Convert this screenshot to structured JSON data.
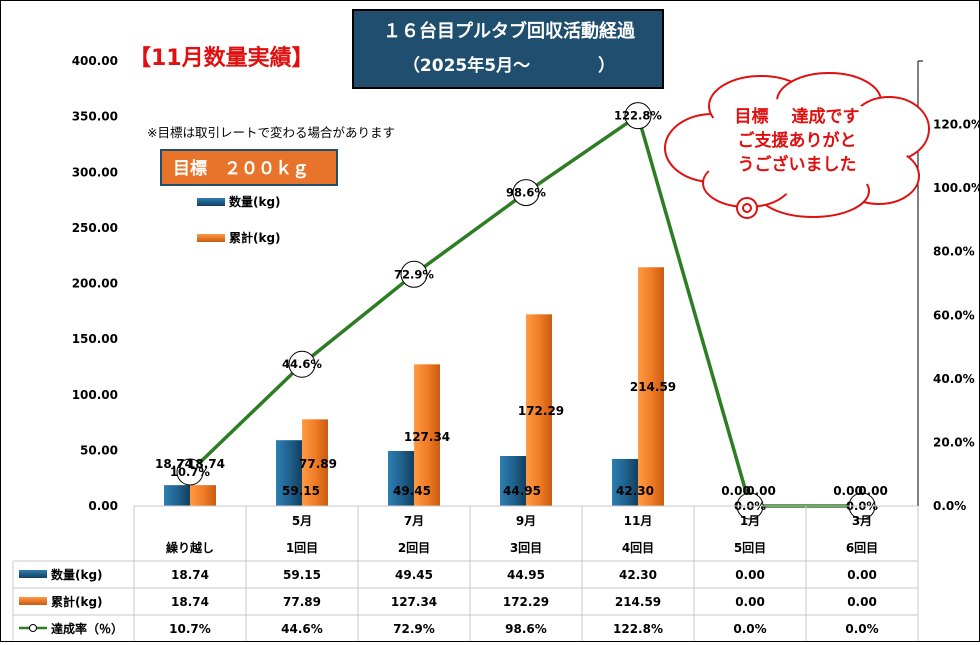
{
  "header": {
    "title_line1": "１６台目プルタブ回収活動経過",
    "title_line2": "（2025年5月～　　　　）",
    "month_label": "【11月数量実績】",
    "note": "※目標は取引レートで変わる場合があります",
    "target_label": "目標　２００ｋｇ"
  },
  "callout": {
    "lines": [
      "目標　 達成です",
      "ご支援ありがと",
      "うございました"
    ]
  },
  "colors": {
    "qty": "#1f5f8b",
    "cum": "#f07a24",
    "rate": "#2e7d24",
    "title_bg": "#1f4e6e",
    "target_bg": "#e8732a",
    "red": "#e01010"
  },
  "chart_data": {
    "type": "bar",
    "title": "１６台目プルタブ回収活動経過",
    "categories": [
      {
        "month": "",
        "round": "繰り越し"
      },
      {
        "month": "5月",
        "round": "1回目"
      },
      {
        "month": "7月",
        "round": "2回目"
      },
      {
        "month": "9月",
        "round": "3回目"
      },
      {
        "month": "11月",
        "round": "4回目"
      },
      {
        "month": "1月",
        "round": "5回目"
      },
      {
        "month": "3月",
        "round": "6回目"
      }
    ],
    "series": [
      {
        "name": "数量(kg)",
        "type": "bar",
        "axis": "left",
        "values": [
          18.74,
          59.15,
          49.45,
          44.95,
          42.3,
          0.0,
          0.0
        ],
        "labels": [
          "18.74",
          "59.15",
          "49.45",
          "44.95",
          "42.30",
          "0.00",
          "0.00"
        ]
      },
      {
        "name": "累計(kg)",
        "type": "bar",
        "axis": "left",
        "values": [
          18.74,
          77.89,
          127.34,
          172.29,
          214.59,
          0.0,
          0.0
        ],
        "labels": [
          "18.74",
          "77.89",
          "127.34",
          "172.29",
          "214.59",
          "0.00",
          "0.00"
        ]
      },
      {
        "name": "達成率（％）",
        "type": "line",
        "axis": "right",
        "values": [
          10.7,
          44.6,
          72.9,
          98.6,
          122.8,
          0.0,
          0.0
        ],
        "labels": [
          "10.7%",
          "44.6%",
          "72.9%",
          "98.6%",
          "122.8%",
          "0.0%",
          "0.0%"
        ]
      }
    ],
    "y_left": {
      "min": 0,
      "max": 400,
      "step": 50,
      "ticks": [
        "0.00",
        "50.00",
        "100.00",
        "150.00",
        "200.00",
        "250.00",
        "300.00",
        "350.00",
        "400.00"
      ]
    },
    "y_right": {
      "min": 0,
      "max": 140,
      "step": 20,
      "ticks": [
        "0.0%",
        "20.0%",
        "40.0%",
        "60.0%",
        "80.0%",
        "100.0%",
        "120.0%"
      ]
    },
    "legend": [
      "数量(kg)",
      "累計(kg)"
    ],
    "table_rows": [
      {
        "name": "数量(kg)",
        "cells": [
          "18.74",
          "59.15",
          "49.45",
          "44.95",
          "42.30",
          "0.00",
          "0.00"
        ]
      },
      {
        "name": "累計(kg)",
        "cells": [
          "18.74",
          "77.89",
          "127.34",
          "172.29",
          "214.59",
          "0.00",
          "0.00"
        ]
      },
      {
        "name": "達成率（％）",
        "cells": [
          "10.7%",
          "44.6%",
          "72.9%",
          "98.6%",
          "122.8%",
          "0.0%",
          "0.0%"
        ]
      }
    ]
  }
}
